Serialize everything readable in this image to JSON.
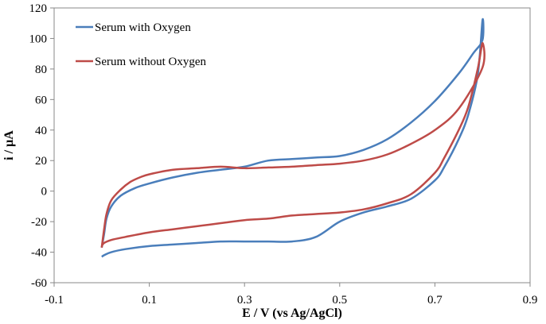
{
  "chart_data": {
    "type": "line",
    "xlabel": "E / V (vs Ag/AgCl)",
    "ylabel": "i / µA",
    "xlim": [
      -0.1,
      0.9
    ],
    "ylim": [
      -60,
      120
    ],
    "xticks": [
      "-0.1",
      "0.1",
      "0.3",
      "0.5",
      "0.7",
      "0.9"
    ],
    "yticks": [
      "-60",
      "-40",
      "-20",
      "0",
      "20",
      "40",
      "60",
      "80",
      "100",
      "120"
    ],
    "grid": false,
    "legend_position": "top-left",
    "series": [
      {
        "name": "Serum with Oxygen",
        "color": "#4a7ebb",
        "x": [
          0.0,
          0.005,
          0.01,
          0.02,
          0.04,
          0.07,
          0.1,
          0.15,
          0.2,
          0.25,
          0.3,
          0.35,
          0.4,
          0.45,
          0.5,
          0.55,
          0.6,
          0.65,
          0.7,
          0.75,
          0.78,
          0.8,
          0.8,
          0.79,
          0.77,
          0.75,
          0.72,
          0.7,
          0.65,
          0.6,
          0.55,
          0.5,
          0.45,
          0.4,
          0.35,
          0.3,
          0.25,
          0.2,
          0.15,
          0.1,
          0.05,
          0.02,
          0.005,
          0.0
        ],
        "y": [
          -37,
          -28,
          -18,
          -10,
          -3,
          2,
          5,
          9,
          12,
          14,
          16,
          20,
          21,
          22,
          23,
          27,
          34,
          45,
          59,
          77,
          90,
          99,
          112,
          76,
          50,
          34,
          16,
          7,
          -5,
          -10,
          -14,
          -20,
          -30,
          -33,
          -33,
          -33,
          -33,
          -34,
          -35,
          -36,
          -38,
          -40,
          -42,
          -43
        ]
      },
      {
        "name": "Serum without Oxygen",
        "color": "#be4b48",
        "x": [
          0.0,
          0.005,
          0.01,
          0.02,
          0.04,
          0.06,
          0.08,
          0.1,
          0.15,
          0.2,
          0.25,
          0.3,
          0.35,
          0.4,
          0.45,
          0.5,
          0.55,
          0.6,
          0.65,
          0.7,
          0.75,
          0.8,
          0.8,
          0.79,
          0.77,
          0.75,
          0.72,
          0.7,
          0.65,
          0.6,
          0.55,
          0.5,
          0.45,
          0.4,
          0.35,
          0.3,
          0.25,
          0.2,
          0.15,
          0.1,
          0.05,
          0.02,
          0.005,
          0.0
        ],
        "y": [
          -37,
          -25,
          -15,
          -6,
          1,
          6,
          9,
          11,
          14,
          15,
          16,
          15,
          15.5,
          16,
          17,
          18,
          20,
          24,
          31,
          40,
          54,
          81,
          97,
          80,
          55,
          40,
          22,
          12,
          -2,
          -8,
          -12,
          -14,
          -15,
          -16,
          -18,
          -19,
          -21,
          -23,
          -25,
          -27,
          -30,
          -32,
          -34,
          -36
        ]
      }
    ]
  }
}
